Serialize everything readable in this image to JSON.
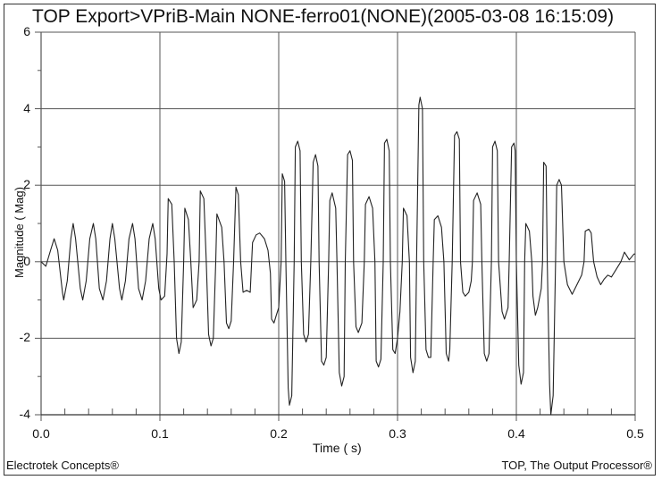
{
  "chart_data": {
    "type": "line",
    "title": "TOP Export>VPriB-Main NONE-ferro01(NONE)(2005-03-08 16:15:09)",
    "xlabel": "Time ( s)",
    "ylabel": "Magnitude ( Mag)",
    "xlim": [
      0.0,
      0.5
    ],
    "ylim": [
      -4,
      6
    ],
    "x_ticks": [
      "0.0",
      "0.1",
      "0.2",
      "0.3",
      "0.4",
      "0.5"
    ],
    "y_ticks": [
      "6",
      "4",
      "2",
      "0",
      "-2",
      "-4"
    ],
    "grid": true,
    "legend": null,
    "series": [
      {
        "name": "VPriB-Main",
        "points": [
          [
            0.0,
            0.0
          ],
          [
            0.004,
            -0.12
          ],
          [
            0.008,
            0.3
          ],
          [
            0.011,
            0.6
          ],
          [
            0.014,
            0.3
          ],
          [
            0.018,
            -0.8
          ],
          [
            0.019,
            -1.0
          ],
          [
            0.022,
            -0.5
          ],
          [
            0.025,
            0.6
          ],
          [
            0.027,
            1.0
          ],
          [
            0.029,
            0.6
          ],
          [
            0.033,
            -0.7
          ],
          [
            0.035,
            -1.0
          ],
          [
            0.038,
            -0.5
          ],
          [
            0.041,
            0.6
          ],
          [
            0.044,
            1.0
          ],
          [
            0.046,
            0.6
          ],
          [
            0.049,
            -0.7
          ],
          [
            0.052,
            -1.0
          ],
          [
            0.055,
            -0.5
          ],
          [
            0.058,
            0.6
          ],
          [
            0.06,
            1.0
          ],
          [
            0.062,
            0.6
          ],
          [
            0.066,
            -0.7
          ],
          [
            0.068,
            -1.0
          ],
          [
            0.071,
            -0.5
          ],
          [
            0.074,
            0.6
          ],
          [
            0.077,
            1.0
          ],
          [
            0.079,
            0.6
          ],
          [
            0.082,
            -0.7
          ],
          [
            0.085,
            -1.0
          ],
          [
            0.088,
            -0.5
          ],
          [
            0.091,
            0.6
          ],
          [
            0.094,
            1.0
          ],
          [
            0.096,
            0.6
          ],
          [
            0.099,
            -0.7
          ],
          [
            0.101,
            -1.0
          ],
          [
            0.104,
            -0.9
          ],
          [
            0.106,
            0.2
          ],
          [
            0.107,
            1.65
          ],
          [
            0.11,
            1.5
          ],
          [
            0.112,
            0.0
          ],
          [
            0.114,
            -2.0
          ],
          [
            0.116,
            -2.4
          ],
          [
            0.118,
            -2.1
          ],
          [
            0.12,
            0.0
          ],
          [
            0.121,
            1.4
          ],
          [
            0.124,
            1.1
          ],
          [
            0.126,
            0.0
          ],
          [
            0.128,
            -1.2
          ],
          [
            0.131,
            -1.0
          ],
          [
            0.133,
            0.0
          ],
          [
            0.134,
            1.85
          ],
          [
            0.137,
            1.65
          ],
          [
            0.139,
            0.0
          ],
          [
            0.141,
            -1.9
          ],
          [
            0.143,
            -2.2
          ],
          [
            0.145,
            -2.0
          ],
          [
            0.147,
            0.0
          ],
          [
            0.148,
            1.25
          ],
          [
            0.152,
            0.9
          ],
          [
            0.154,
            0.0
          ],
          [
            0.156,
            -1.6
          ],
          [
            0.158,
            -1.75
          ],
          [
            0.16,
            -1.55
          ],
          [
            0.162,
            0.0
          ],
          [
            0.164,
            1.95
          ],
          [
            0.166,
            1.75
          ],
          [
            0.168,
            0.0
          ],
          [
            0.17,
            -0.8
          ],
          [
            0.173,
            -0.75
          ],
          [
            0.176,
            -0.8
          ],
          [
            0.178,
            0.5
          ],
          [
            0.181,
            0.7
          ],
          [
            0.184,
            0.75
          ],
          [
            0.188,
            0.6
          ],
          [
            0.191,
            0.3
          ],
          [
            0.193,
            -0.3
          ],
          [
            0.194,
            -1.5
          ],
          [
            0.196,
            -1.6
          ],
          [
            0.198,
            -1.4
          ],
          [
            0.2,
            -1.2
          ],
          [
            0.202,
            0.0
          ],
          [
            0.203,
            2.3
          ],
          [
            0.205,
            2.1
          ],
          [
            0.206,
            0.0
          ],
          [
            0.208,
            -3.3
          ],
          [
            0.209,
            -3.75
          ],
          [
            0.211,
            -3.5
          ],
          [
            0.213,
            0.0
          ],
          [
            0.214,
            3.0
          ],
          [
            0.216,
            3.15
          ],
          [
            0.218,
            2.9
          ],
          [
            0.219,
            0.0
          ],
          [
            0.221,
            -1.9
          ],
          [
            0.223,
            -2.1
          ],
          [
            0.225,
            -1.9
          ],
          [
            0.227,
            0.0
          ],
          [
            0.229,
            2.6
          ],
          [
            0.231,
            2.8
          ],
          [
            0.233,
            2.5
          ],
          [
            0.234,
            0.0
          ],
          [
            0.236,
            -2.6
          ],
          [
            0.238,
            -2.7
          ],
          [
            0.24,
            -2.5
          ],
          [
            0.242,
            0.0
          ],
          [
            0.243,
            1.6
          ],
          [
            0.245,
            1.8
          ],
          [
            0.248,
            1.4
          ],
          [
            0.249,
            0.0
          ],
          [
            0.251,
            -2.9
          ],
          [
            0.253,
            -3.25
          ],
          [
            0.255,
            -3.0
          ],
          [
            0.256,
            0.0
          ],
          [
            0.258,
            2.8
          ],
          [
            0.26,
            2.9
          ],
          [
            0.262,
            2.65
          ],
          [
            0.263,
            0.0
          ],
          [
            0.265,
            -1.7
          ],
          [
            0.267,
            -1.85
          ],
          [
            0.27,
            -1.6
          ],
          [
            0.272,
            0.0
          ],
          [
            0.273,
            1.5
          ],
          [
            0.276,
            1.7
          ],
          [
            0.279,
            1.4
          ],
          [
            0.281,
            0.0
          ],
          [
            0.282,
            -2.6
          ],
          [
            0.284,
            -2.75
          ],
          [
            0.286,
            -2.55
          ],
          [
            0.288,
            0.0
          ],
          [
            0.289,
            3.1
          ],
          [
            0.291,
            3.2
          ],
          [
            0.293,
            2.9
          ],
          [
            0.294,
            0.0
          ],
          [
            0.296,
            -2.3
          ],
          [
            0.298,
            -2.4
          ],
          [
            0.3,
            -2.0
          ],
          [
            0.302,
            -1.3
          ],
          [
            0.304,
            0.0
          ],
          [
            0.305,
            1.4
          ],
          [
            0.308,
            1.2
          ],
          [
            0.31,
            0.0
          ],
          [
            0.311,
            -2.5
          ],
          [
            0.313,
            -2.9
          ],
          [
            0.315,
            -2.6
          ],
          [
            0.316,
            0.0
          ],
          [
            0.318,
            4.1
          ],
          [
            0.319,
            4.3
          ],
          [
            0.321,
            4.0
          ],
          [
            0.322,
            0.0
          ],
          [
            0.324,
            -2.3
          ],
          [
            0.326,
            -2.5
          ],
          [
            0.328,
            -2.5
          ],
          [
            0.33,
            0.0
          ],
          [
            0.331,
            1.1
          ],
          [
            0.334,
            1.2
          ],
          [
            0.337,
            0.9
          ],
          [
            0.339,
            0.0
          ],
          [
            0.341,
            -2.4
          ],
          [
            0.343,
            -2.6
          ],
          [
            0.344,
            -2.3
          ],
          [
            0.346,
            0.0
          ],
          [
            0.348,
            3.3
          ],
          [
            0.35,
            3.4
          ],
          [
            0.352,
            3.2
          ],
          [
            0.353,
            0.0
          ],
          [
            0.355,
            -0.8
          ],
          [
            0.357,
            -0.9
          ],
          [
            0.36,
            -0.8
          ],
          [
            0.362,
            -0.5
          ],
          [
            0.363,
            0.0
          ],
          [
            0.364,
            1.6
          ],
          [
            0.367,
            1.8
          ],
          [
            0.37,
            1.5
          ],
          [
            0.371,
            0.0
          ],
          [
            0.373,
            -2.4
          ],
          [
            0.375,
            -2.6
          ],
          [
            0.377,
            -2.4
          ],
          [
            0.379,
            0.0
          ],
          [
            0.38,
            3.0
          ],
          [
            0.382,
            3.15
          ],
          [
            0.384,
            2.9
          ],
          [
            0.385,
            0.0
          ],
          [
            0.388,
            -1.3
          ],
          [
            0.39,
            -1.5
          ],
          [
            0.393,
            -1.2
          ],
          [
            0.394,
            0.0
          ],
          [
            0.396,
            3.0
          ],
          [
            0.398,
            3.1
          ],
          [
            0.399,
            2.9
          ],
          [
            0.4,
            0.0
          ],
          [
            0.402,
            -2.7
          ],
          [
            0.404,
            -3.2
          ],
          [
            0.406,
            -2.9
          ],
          [
            0.407,
            0.0
          ],
          [
            0.408,
            1.0
          ],
          [
            0.411,
            0.8
          ],
          [
            0.413,
            0.0
          ],
          [
            0.414,
            -0.9
          ],
          [
            0.416,
            -1.4
          ],
          [
            0.418,
            -1.2
          ],
          [
            0.421,
            -0.7
          ],
          [
            0.422,
            0.0
          ],
          [
            0.423,
            2.6
          ],
          [
            0.425,
            2.5
          ],
          [
            0.426,
            0.0
          ],
          [
            0.428,
            -3.2
          ],
          [
            0.429,
            -4.0
          ],
          [
            0.431,
            -3.5
          ],
          [
            0.433,
            0.0
          ],
          [
            0.434,
            2.0
          ],
          [
            0.436,
            2.15
          ],
          [
            0.438,
            2.0
          ],
          [
            0.44,
            0.0
          ],
          [
            0.443,
            -0.6
          ],
          [
            0.447,
            -0.85
          ],
          [
            0.451,
            -0.6
          ],
          [
            0.455,
            -0.35
          ],
          [
            0.457,
            0.0
          ],
          [
            0.458,
            0.8
          ],
          [
            0.461,
            0.85
          ],
          [
            0.463,
            0.75
          ],
          [
            0.465,
            0.0
          ],
          [
            0.468,
            -0.4
          ],
          [
            0.471,
            -0.6
          ],
          [
            0.474,
            -0.45
          ],
          [
            0.477,
            -0.35
          ],
          [
            0.48,
            -0.4
          ],
          [
            0.484,
            -0.2
          ],
          [
            0.488,
            0.0
          ],
          [
            0.491,
            0.25
          ],
          [
            0.495,
            0.05
          ],
          [
            0.499,
            0.2
          ],
          [
            0.5,
            0.2
          ]
        ]
      }
    ]
  },
  "footer": {
    "left": "Electrotek Concepts®",
    "right": "TOP, The Output Processor®"
  },
  "colors": {
    "line": "#222222",
    "grid": "#555555",
    "background": "#ffffff"
  }
}
